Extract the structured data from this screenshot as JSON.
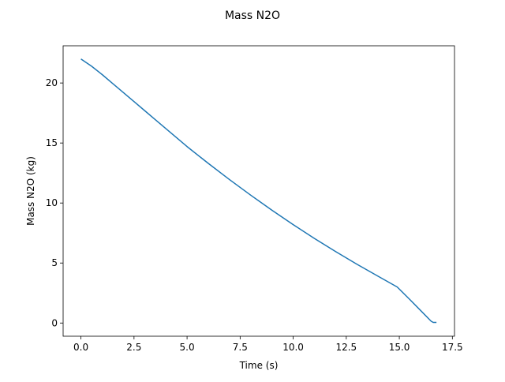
{
  "chart_data": {
    "type": "line",
    "title": "Mass N2O",
    "xlabel": "Time (s)",
    "ylabel": "Mass N2O (kg)",
    "xlim": [
      -0.84,
      17.6
    ],
    "ylim": [
      -1.1,
      23.1
    ],
    "xticks": [
      0.0,
      2.5,
      5.0,
      7.5,
      10.0,
      12.5,
      15.0,
      17.5
    ],
    "xtick_labels": [
      "0.0",
      "2.5",
      "5.0",
      "7.5",
      "10.0",
      "12.5",
      "15.0",
      "17.5"
    ],
    "yticks": [
      0,
      5,
      10,
      15,
      20
    ],
    "ytick_labels": [
      "0",
      "5",
      "10",
      "15",
      "20"
    ],
    "grid": false,
    "series": [
      {
        "color": "#1f77b4",
        "x": [
          0.0,
          0.5,
          1.0,
          1.5,
          2.0,
          2.5,
          3.0,
          3.5,
          4.0,
          4.5,
          5.0,
          6.0,
          7.0,
          8.0,
          9.0,
          10.0,
          11.0,
          12.0,
          13.0,
          14.0,
          14.9,
          15.5,
          16.0,
          16.5,
          16.6,
          16.75
        ],
        "y": [
          22.0,
          21.4,
          20.7,
          19.95,
          19.2,
          18.45,
          17.7,
          16.95,
          16.2,
          15.45,
          14.7,
          13.3,
          11.95,
          10.65,
          9.4,
          8.2,
          7.05,
          5.95,
          4.9,
          3.9,
          3.0,
          1.95,
          1.05,
          0.15,
          0.05,
          0.05
        ]
      }
    ]
  }
}
